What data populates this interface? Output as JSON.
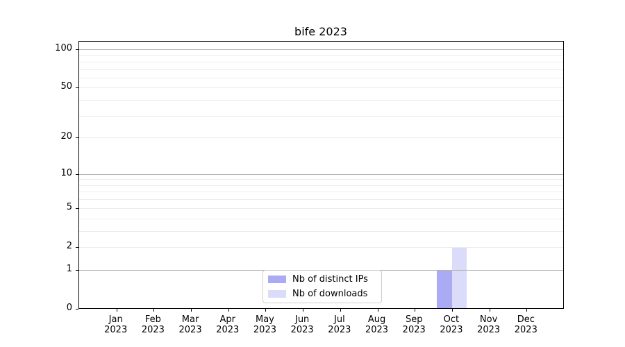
{
  "figure": {
    "background": "#ffffff",
    "spine_color": "#000000"
  },
  "chart_data": {
    "type": "bar",
    "title": "bife 2023",
    "xlabel": "",
    "ylabel": "",
    "categories": [
      "Jan 2023",
      "Feb 2023",
      "Mar 2023",
      "Apr 2023",
      "May 2023",
      "Jun 2023",
      "Jul 2023",
      "Aug 2023",
      "Sep 2023",
      "Oct 2023",
      "Nov 2023",
      "Dec 2023"
    ],
    "series": [
      {
        "name": "Nb of distinct IPs",
        "color": "#aaabf4",
        "values": [
          0,
          0,
          0,
          0,
          0,
          0,
          0,
          0,
          0,
          1,
          0,
          0
        ]
      },
      {
        "name": "Nb of downloads",
        "color": "#dbdbfa",
        "values": [
          0,
          0,
          0,
          0,
          0,
          0,
          0,
          0,
          0,
          2,
          0,
          0
        ]
      }
    ],
    "y_ticks": [
      0,
      1,
      2,
      5,
      10,
      20,
      50,
      100
    ],
    "y_scale": "log10(1+v)",
    "ylim": [
      0,
      114
    ],
    "grid": {
      "major_lines": [
        1,
        10,
        100
      ],
      "minor_lines": [
        2,
        3,
        4,
        5,
        6,
        7,
        8,
        9,
        20,
        30,
        40,
        50,
        60,
        70,
        80,
        90
      ],
      "major_color": "#b2b2b2",
      "minor_color": "#ececec"
    },
    "legend": {
      "position": "lower center",
      "items": [
        "Nb of distinct IPs",
        "Nb of downloads"
      ]
    }
  }
}
